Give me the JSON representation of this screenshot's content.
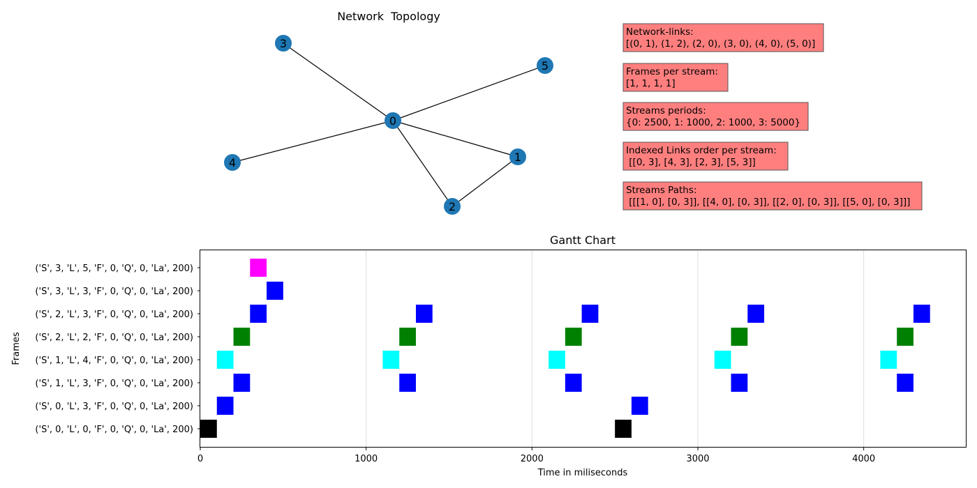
{
  "topology": {
    "title": "Network  Topology",
    "nodes": [
      {
        "id": "0"
      },
      {
        "id": "1"
      },
      {
        "id": "2"
      },
      {
        "id": "3"
      },
      {
        "id": "4"
      },
      {
        "id": "5"
      }
    ],
    "edges": [
      [
        "0",
        "1"
      ],
      [
        "1",
        "2"
      ],
      [
        "2",
        "0"
      ],
      [
        "3",
        "0"
      ],
      [
        "4",
        "0"
      ],
      [
        "5",
        "0"
      ]
    ],
    "node_color": "#1f77b4"
  },
  "info_boxes": [
    {
      "line1": "Network-links:",
      "line2": "[(0, 1), (1, 2), (2, 0), (3, 0), (4, 0), (5, 0)]"
    },
    {
      "line1": "Frames per stream:",
      "line2": "[1, 1, 1, 1]"
    },
    {
      "line1": "Streams periods:",
      "line2": "{0: 2500, 1: 1000, 2: 1000, 3: 5000}"
    },
    {
      "line1": "Indexed Links order per stream:",
      "line2": " [[0, 3], [4, 3], [2, 3], [5, 3]]"
    },
    {
      "line1": "Streams Paths:",
      "line2": " [[[1, 0], [0, 3]], [[4, 0], [0, 3]], [[2, 0], [0, 3]], [[5, 0], [0, 3]]]"
    }
  ],
  "info_box_color": "#ff7f7f",
  "chart_data": {
    "type": "gantt",
    "title": "Gantt Chart",
    "xlabel": "Time in miliseconds",
    "ylabel": "Frames",
    "xlim": [
      0,
      4620
    ],
    "xticks": [
      0,
      1000,
      2000,
      3000,
      4000
    ],
    "grid": "vertical",
    "categories": [
      "('S', 0, 'L', 0, 'F', 0, 'Q', 0, 'La', 200)",
      "('S', 0, 'L', 3, 'F', 0, 'Q', 0, 'La', 200)",
      "('S', 1, 'L', 3, 'F', 0, 'Q', 0, 'La', 200)",
      "('S', 1, 'L', 4, 'F', 0, 'Q', 0, 'La', 200)",
      "('S', 2, 'L', 2, 'F', 0, 'Q', 0, 'La', 200)",
      "('S', 2, 'L', 3, 'F', 0, 'Q', 0, 'La', 200)",
      "('S', 3, 'L', 3, 'F', 0, 'Q', 0, 'La', 200)",
      "('S', 3, 'L', 5, 'F', 0, 'Q', 0, 'La', 200)"
    ],
    "bars": [
      {
        "row": 0,
        "start": 0,
        "duration": 100,
        "color": "#000000"
      },
      {
        "row": 0,
        "start": 2500,
        "duration": 100,
        "color": "#000000"
      },
      {
        "row": 1,
        "start": 100,
        "duration": 100,
        "color": "#0000ff"
      },
      {
        "row": 1,
        "start": 2600,
        "duration": 100,
        "color": "#0000ff"
      },
      {
        "row": 2,
        "start": 200,
        "duration": 100,
        "color": "#0000ff"
      },
      {
        "row": 2,
        "start": 1200,
        "duration": 100,
        "color": "#0000ff"
      },
      {
        "row": 2,
        "start": 2200,
        "duration": 100,
        "color": "#0000ff"
      },
      {
        "row": 2,
        "start": 3200,
        "duration": 100,
        "color": "#0000ff"
      },
      {
        "row": 2,
        "start": 4200,
        "duration": 100,
        "color": "#0000ff"
      },
      {
        "row": 3,
        "start": 100,
        "duration": 100,
        "color": "#00ffff"
      },
      {
        "row": 3,
        "start": 1100,
        "duration": 100,
        "color": "#00ffff"
      },
      {
        "row": 3,
        "start": 2100,
        "duration": 100,
        "color": "#00ffff"
      },
      {
        "row": 3,
        "start": 3100,
        "duration": 100,
        "color": "#00ffff"
      },
      {
        "row": 3,
        "start": 4100,
        "duration": 100,
        "color": "#00ffff"
      },
      {
        "row": 4,
        "start": 200,
        "duration": 100,
        "color": "#008000"
      },
      {
        "row": 4,
        "start": 1200,
        "duration": 100,
        "color": "#008000"
      },
      {
        "row": 4,
        "start": 2200,
        "duration": 100,
        "color": "#008000"
      },
      {
        "row": 4,
        "start": 3200,
        "duration": 100,
        "color": "#008000"
      },
      {
        "row": 4,
        "start": 4200,
        "duration": 100,
        "color": "#008000"
      },
      {
        "row": 5,
        "start": 300,
        "duration": 100,
        "color": "#0000ff"
      },
      {
        "row": 5,
        "start": 1300,
        "duration": 100,
        "color": "#0000ff"
      },
      {
        "row": 5,
        "start": 2300,
        "duration": 100,
        "color": "#0000ff"
      },
      {
        "row": 5,
        "start": 3300,
        "duration": 100,
        "color": "#0000ff"
      },
      {
        "row": 5,
        "start": 4300,
        "duration": 100,
        "color": "#0000ff"
      },
      {
        "row": 6,
        "start": 400,
        "duration": 100,
        "color": "#0000ff"
      },
      {
        "row": 7,
        "start": 300,
        "duration": 100,
        "color": "#ff00ff"
      }
    ]
  }
}
